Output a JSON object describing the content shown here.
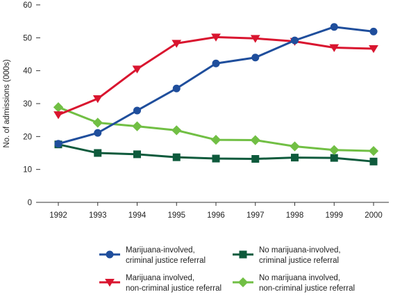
{
  "chart_data": {
    "type": "line",
    "title": "",
    "xlabel": "",
    "ylabel": "No. of admissions (000s)",
    "x": [
      "1992",
      "1993",
      "1994",
      "1995",
      "1996",
      "1997",
      "1998",
      "1999",
      "2000"
    ],
    "ylim": [
      0,
      60
    ],
    "yticks": [
      0,
      10,
      20,
      30,
      40,
      50,
      60
    ],
    "grid": false,
    "legend_position": "bottom",
    "series": [
      {
        "key": "mj_cj",
        "name_lines": [
          "Marijuana-involved,",
          "criminal justice referral"
        ],
        "color": "#1f4e9c",
        "marker": "circle",
        "values": [
          17.8,
          21.1,
          27.9,
          34.6,
          42.2,
          44.0,
          49.2,
          53.3,
          51.9
        ]
      },
      {
        "key": "mj_noncj",
        "name_lines": [
          "Marijuana involved,",
          "non-criminal justice referral"
        ],
        "color": "#d9152f",
        "marker": "triangle-down",
        "values": [
          26.6,
          31.5,
          40.5,
          48.3,
          50.2,
          49.8,
          48.9,
          47.0,
          46.7
        ]
      },
      {
        "key": "nomj_cj",
        "name_lines": [
          "No marijuana-involved,",
          "criminal justice referral"
        ],
        "color": "#0e5a3c",
        "marker": "square",
        "values": [
          17.6,
          15.0,
          14.6,
          13.7,
          13.3,
          13.2,
          13.6,
          13.5,
          12.4
        ]
      },
      {
        "key": "nomj_noncj",
        "name_lines": [
          "No marijuana involved,",
          "non-criminal justice referral"
        ],
        "color": "#71bf44",
        "marker": "diamond",
        "values": [
          28.9,
          24.2,
          23.1,
          21.9,
          19.0,
          18.9,
          17.0,
          15.9,
          15.6
        ]
      }
    ]
  }
}
